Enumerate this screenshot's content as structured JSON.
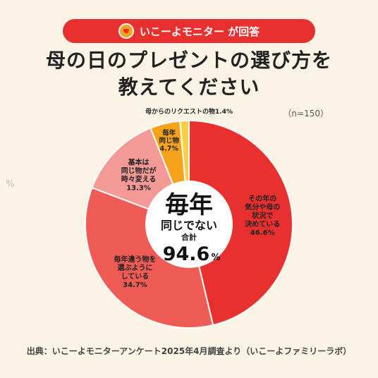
{
  "header": {
    "badge": "いこーよモニター が回答",
    "title_line1": "母の日のプレゼントの選び方を",
    "title_line2": "教えてください"
  },
  "sample_size": "（n=150）",
  "side_mark": "%",
  "center": {
    "line1": "毎年",
    "line2": "同じでない",
    "line3": "合計",
    "value": "94.6",
    "unit": "%"
  },
  "source": "出典：いこーよモニターアンケート2025年4月調査より（いこーよファミリーラボ）",
  "chart_data": {
    "type": "pie",
    "title": "母の日のプレゼントの選び方を教えてください",
    "unit": "%",
    "slices": [
      {
        "label": "その年の気分や母の状況で決めている",
        "value": 46.6,
        "color": "#e8312e"
      },
      {
        "label": "毎年違う物を選ぶようにしている",
        "value": 34.7,
        "color": "#ee5c55"
      },
      {
        "label": "基本は同じ物だが時々変える",
        "value": 13.3,
        "color": "#f39a96"
      },
      {
        "label": "毎年同じ物",
        "value": 4.7,
        "color": "#f6a21a"
      },
      {
        "label": "母からのリクエストの物",
        "value": 1.4,
        "color": "#f7d046"
      }
    ]
  },
  "slice_labels": [
    {
      "lines": [
        "その年の",
        "気分や母の",
        "状況で",
        "決めている",
        "46.6%"
      ]
    },
    {
      "lines": [
        "毎年違う物を",
        "選ぶように",
        "している",
        "34.7%"
      ]
    },
    {
      "lines": [
        "基本は",
        "同じ物だが",
        "時々変える",
        "13.3%"
      ]
    },
    {
      "lines": [
        "毎年",
        "同じ物",
        "4.7%"
      ]
    },
    {
      "lines": [
        "母からのリクエストの物1.4%"
      ]
    }
  ]
}
